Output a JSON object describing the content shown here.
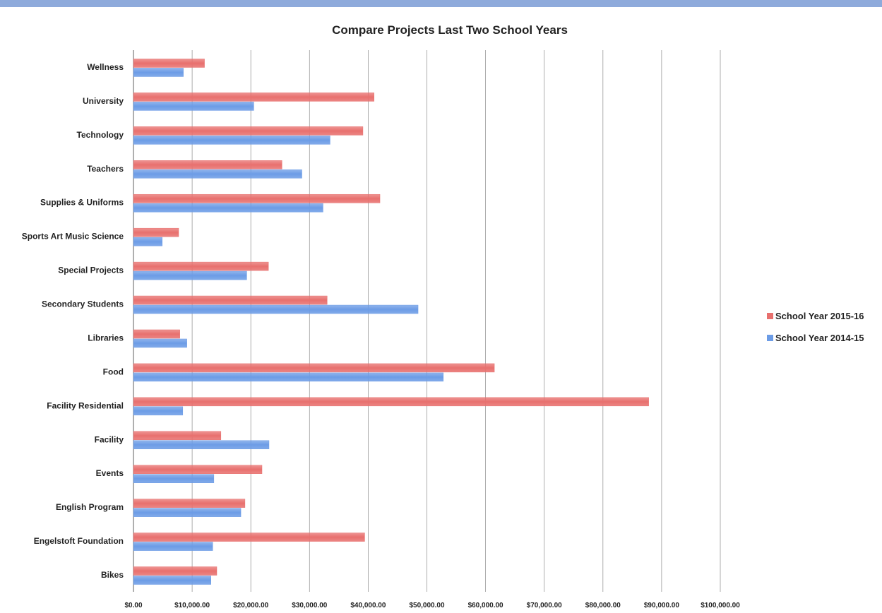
{
  "chart_data": {
    "type": "bar",
    "orientation": "horizontal",
    "title": "Compare Projects Last Two School Years",
    "xlabel": "",
    "ylabel": "",
    "xlim": [
      0,
      100000
    ],
    "x_ticks": [
      "$0.00",
      "$10,000.00",
      "$20,000.00",
      "$30,000.00",
      "$40,000.00",
      "$50,000.00",
      "$60,000.00",
      "$70,000.00",
      "$80,000.00",
      "$90,000.00",
      "$100,000.00"
    ],
    "x_tick_values": [
      0,
      10000,
      20000,
      30000,
      40000,
      50000,
      60000,
      70000,
      80000,
      90000,
      100000
    ],
    "grid": "vertical",
    "legend_position": "right",
    "categories": [
      "Bikes",
      "Engelstoft Foundation",
      "English Program",
      "Events",
      "Facility",
      "Facility Residential",
      "Food",
      "Libraries",
      "Secondary Students",
      "Special Projects",
      "Sports Art Music Science",
      "Supplies & Uniforms",
      "Teachers",
      "Technology",
      "University",
      "Wellness"
    ],
    "series": [
      {
        "name": "School Year 2015-16",
        "color": "#e8706e",
        "values": [
          14200,
          39400,
          19000,
          21900,
          14900,
          87800,
          61500,
          7900,
          33000,
          23000,
          7700,
          42000,
          25300,
          39100,
          41000,
          12100
        ]
      },
      {
        "name": "School Year 2014-15",
        "color": "#6c9ce6",
        "values": [
          13200,
          13500,
          18300,
          13700,
          23100,
          8400,
          52800,
          9100,
          48500,
          19300,
          4900,
          32300,
          28700,
          33500,
          20500,
          8500
        ]
      }
    ]
  }
}
